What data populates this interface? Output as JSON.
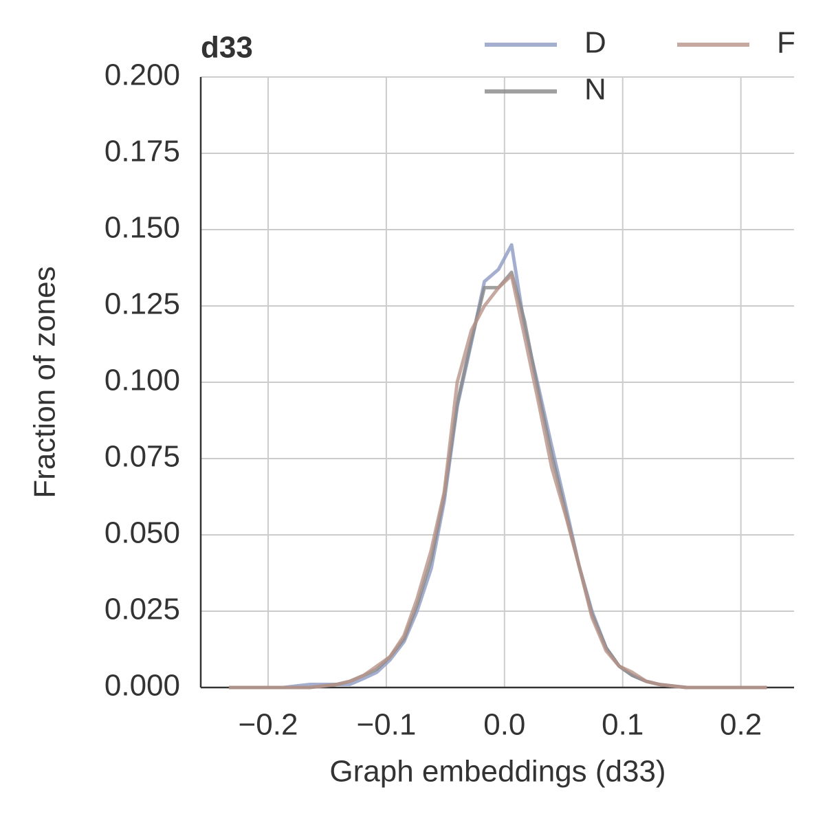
{
  "chart_data": {
    "type": "line",
    "title": "d33",
    "xlabel": "Graph embeddings (d33)",
    "ylabel": "Fraction of zones",
    "x": [
      -0.233,
      -0.222,
      -0.21,
      -0.199,
      -0.187,
      -0.176,
      -0.165,
      -0.153,
      -0.142,
      -0.131,
      -0.119,
      -0.108,
      -0.097,
      -0.085,
      -0.074,
      -0.062,
      -0.051,
      -0.04,
      -0.028,
      -0.017,
      -0.005,
      0.006,
      0.017,
      0.029,
      0.04,
      0.052,
      0.063,
      0.074,
      0.086,
      0.097,
      0.108,
      0.12,
      0.131,
      0.142,
      0.154,
      0.165,
      0.176,
      0.188,
      0.199,
      0.211,
      0.222
    ],
    "series": [
      {
        "name": "D",
        "color": "#8d9bc4",
        "values": [
          0,
          0,
          0,
          0,
          0,
          0.0005,
          0.001,
          0.001,
          0.001,
          0.001,
          0.003,
          0.005,
          0.009,
          0.015,
          0.025,
          0.039,
          0.061,
          0.092,
          0.113,
          0.133,
          0.137,
          0.145,
          0.118,
          0.098,
          0.079,
          0.059,
          0.04,
          0.025,
          0.013,
          0.007,
          0.004,
          0.002,
          0.001,
          0.0005,
          0,
          0,
          0,
          0,
          0,
          0,
          0
        ]
      },
      {
        "name": "N",
        "color": "#888888",
        "values": [
          0,
          0,
          0,
          0,
          0,
          0,
          0,
          0.0005,
          0.001,
          0.002,
          0.004,
          0.006,
          0.01,
          0.016,
          0.027,
          0.042,
          0.063,
          0.093,
          0.114,
          0.131,
          0.131,
          0.136,
          0.12,
          0.096,
          0.076,
          0.057,
          0.04,
          0.024,
          0.013,
          0.007,
          0.004,
          0.002,
          0.001,
          0.0005,
          0,
          0,
          0,
          0,
          0,
          0,
          0
        ]
      },
      {
        "name": "F",
        "color": "#b89488",
        "values": [
          0,
          0,
          0,
          0,
          0,
          0,
          0,
          0.0005,
          0.001,
          0.002,
          0.004,
          0.007,
          0.01,
          0.017,
          0.029,
          0.045,
          0.064,
          0.1,
          0.117,
          0.125,
          0.131,
          0.135,
          0.115,
          0.093,
          0.072,
          0.056,
          0.04,
          0.023,
          0.012,
          0.007,
          0.005,
          0.002,
          0.001,
          0.0005,
          0,
          0,
          0,
          0,
          0,
          0,
          0
        ]
      }
    ],
    "xlim": [
      -0.257,
      0.245
    ],
    "ylim": [
      0,
      0.2
    ],
    "xticks": [
      {
        "value": -0.2,
        "label": "−0.2"
      },
      {
        "value": -0.1,
        "label": "−0.1"
      },
      {
        "value": 0,
        "label": "0.0"
      },
      {
        "value": 0.1,
        "label": "0.1"
      },
      {
        "value": 0.2,
        "label": "0.2"
      }
    ],
    "yticks": [
      {
        "value": 0,
        "label": "0.000"
      },
      {
        "value": 0.025,
        "label": "0.025"
      },
      {
        "value": 0.05,
        "label": "0.050"
      },
      {
        "value": 0.075,
        "label": "0.075"
      },
      {
        "value": 0.1,
        "label": "0.100"
      },
      {
        "value": 0.125,
        "label": "0.125"
      },
      {
        "value": 0.15,
        "label": "0.150"
      },
      {
        "value": 0.175,
        "label": "0.175"
      },
      {
        "value": 0.2,
        "label": "0.200"
      }
    ],
    "grid": true,
    "legend": "upper right"
  }
}
